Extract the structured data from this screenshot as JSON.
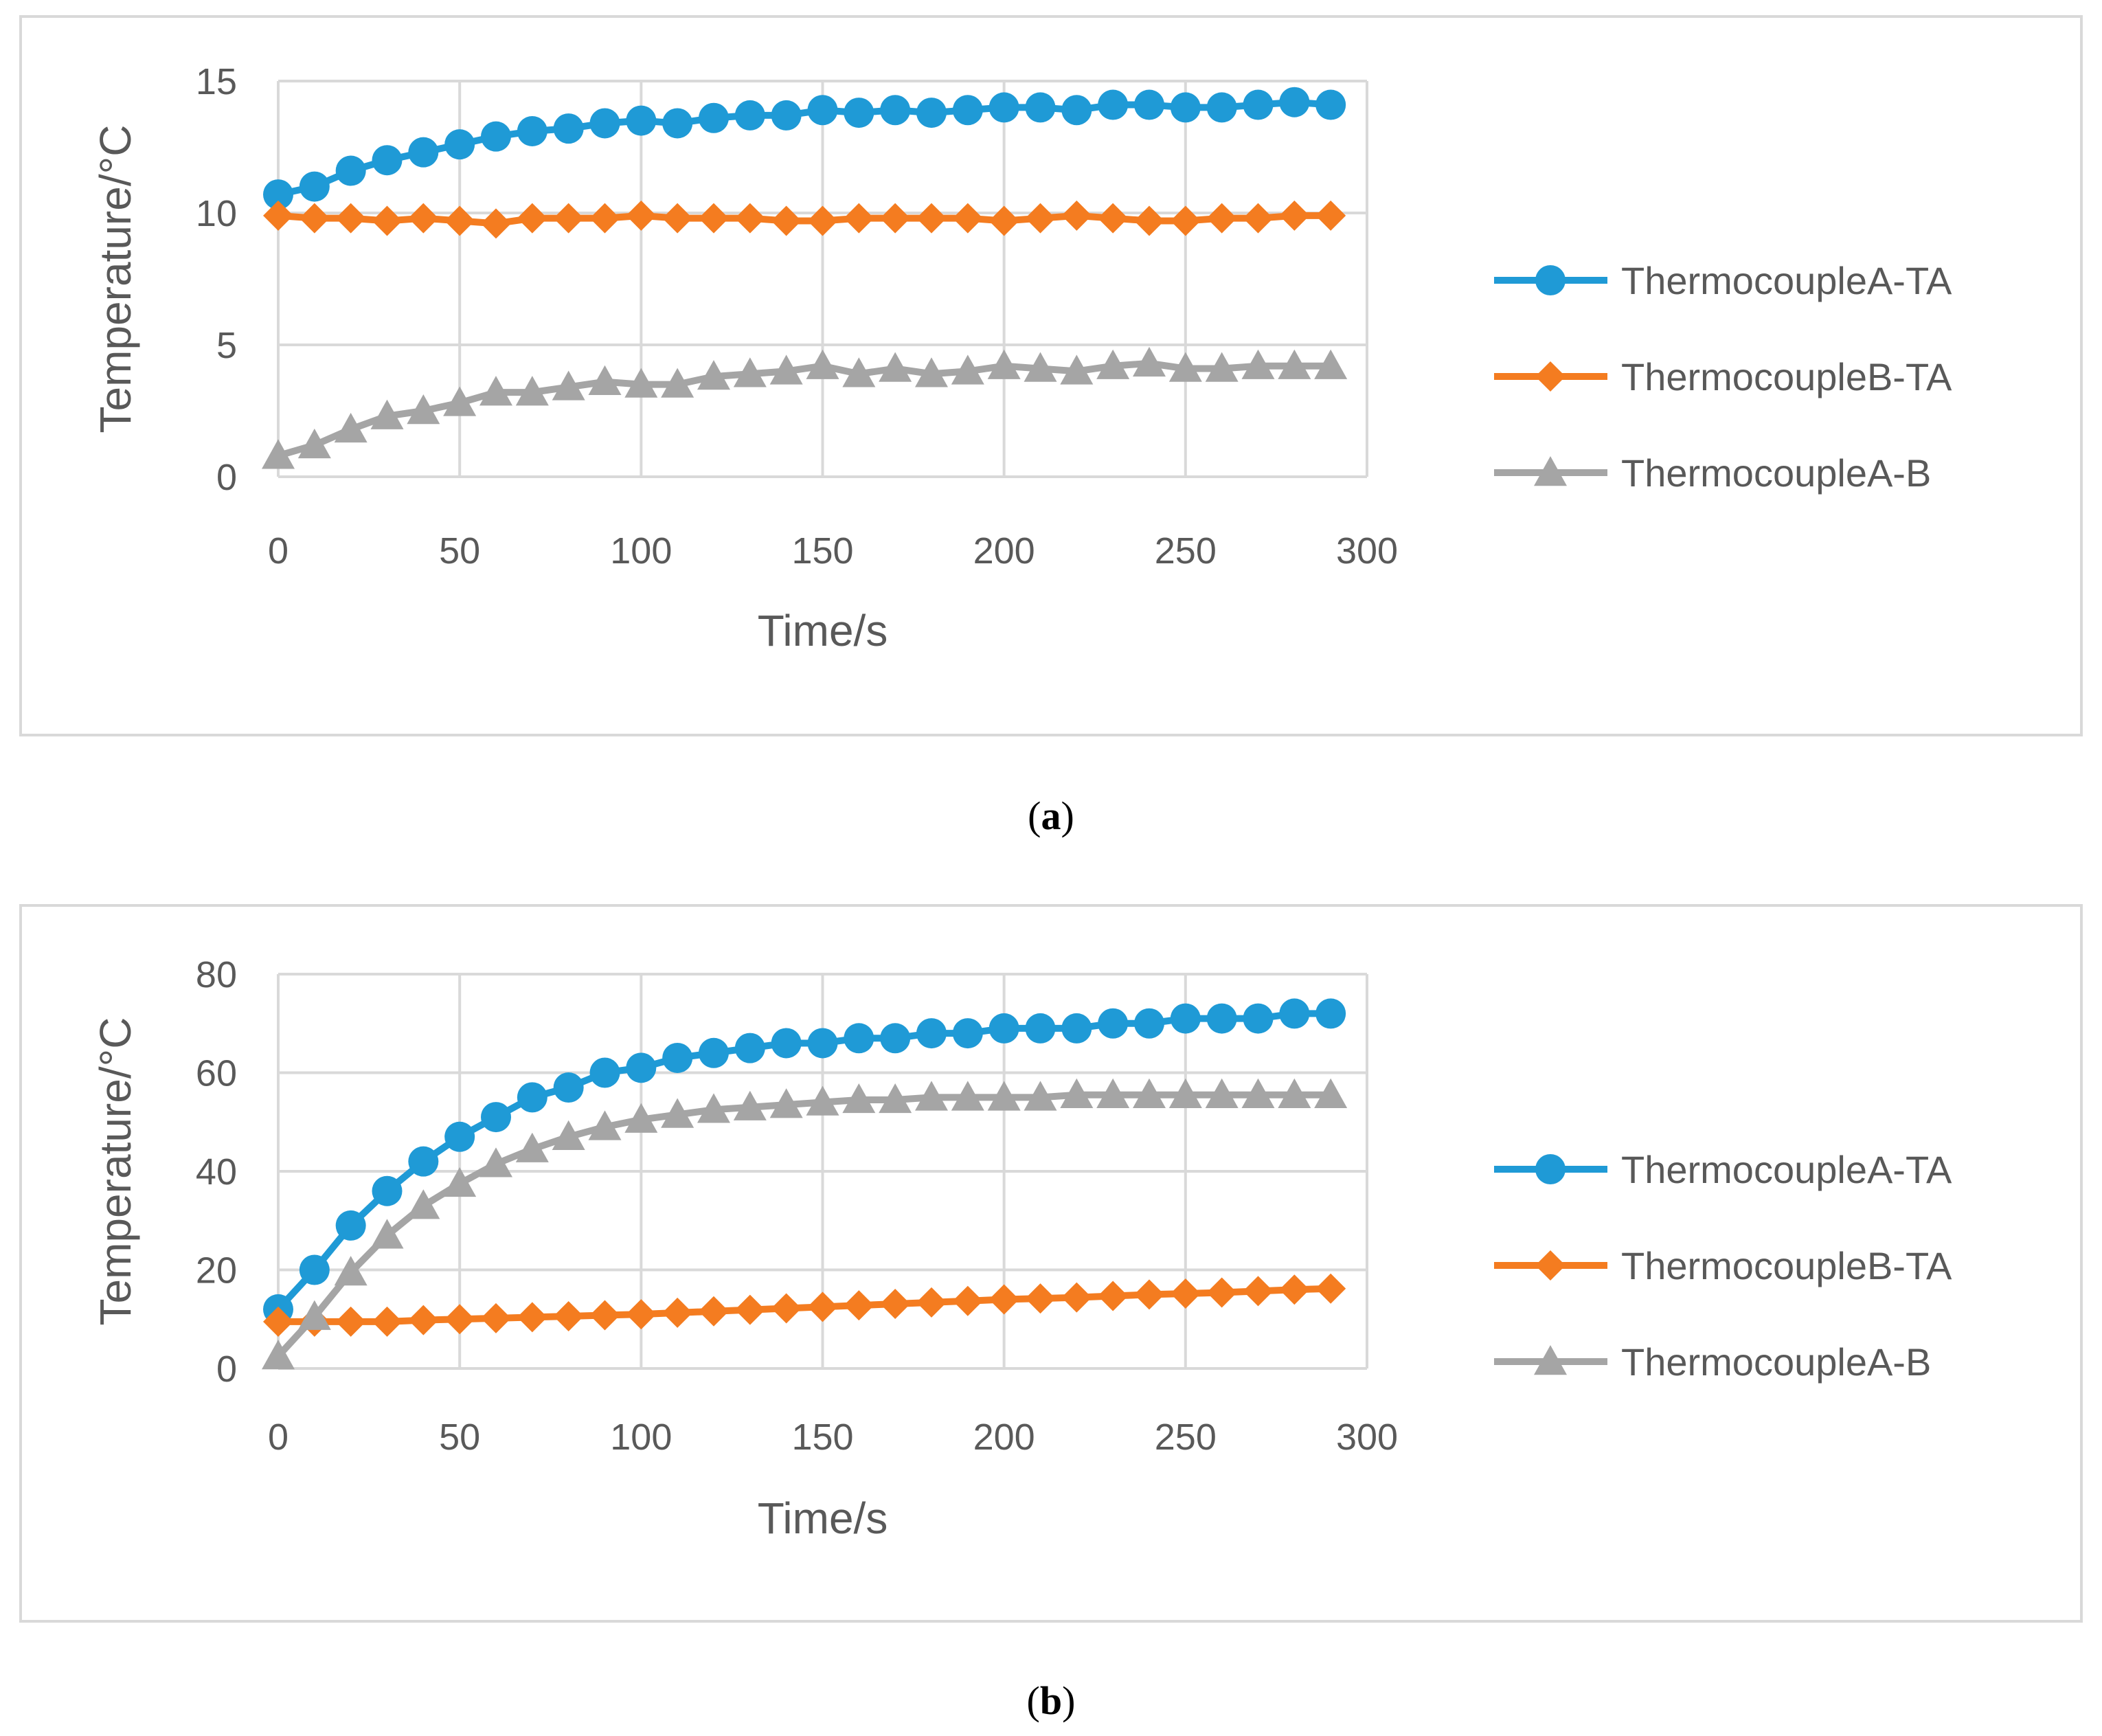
{
  "charts": [
    {
      "caption_letter": "a",
      "chart_ref": 0
    },
    {
      "caption_letter": "b",
      "chart_ref": 1
    }
  ],
  "chart_data": [
    {
      "type": "line",
      "title": "",
      "xlabel": "Time/s",
      "ylabel": "Temperature/°C",
      "xlim": [
        0,
        300
      ],
      "ylim": [
        0,
        15
      ],
      "xticks": [
        "0",
        "50",
        "100",
        "150",
        "200",
        "250",
        "300"
      ],
      "yticks": [
        "0",
        "5",
        "10",
        "15"
      ],
      "grid": true,
      "legend_position": "right",
      "x": [
        0,
        10,
        20,
        30,
        40,
        50,
        60,
        70,
        80,
        90,
        100,
        110,
        120,
        130,
        140,
        150,
        160,
        170,
        180,
        190,
        200,
        210,
        220,
        230,
        240,
        250,
        260,
        270,
        280,
        290
      ],
      "series": [
        {
          "name": "ThermocoupleA-TA",
          "color": "#1f9ad6",
          "marker": "circle",
          "values": [
            10.7,
            11.0,
            11.6,
            12.0,
            12.3,
            12.6,
            12.9,
            13.1,
            13.2,
            13.4,
            13.5,
            13.4,
            13.6,
            13.7,
            13.7,
            13.9,
            13.8,
            13.9,
            13.8,
            13.9,
            14.0,
            14.0,
            13.9,
            14.1,
            14.1,
            14.0,
            14.0,
            14.1,
            14.2,
            14.1
          ]
        },
        {
          "name": "ThermocoupleB-TA",
          "color": "#f47c20",
          "marker": "diamond",
          "values": [
            9.9,
            9.8,
            9.8,
            9.7,
            9.8,
            9.7,
            9.6,
            9.8,
            9.8,
            9.8,
            9.9,
            9.8,
            9.8,
            9.8,
            9.7,
            9.7,
            9.8,
            9.8,
            9.8,
            9.8,
            9.7,
            9.8,
            9.9,
            9.8,
            9.7,
            9.7,
            9.8,
            9.8,
            9.9,
            9.9
          ]
        },
        {
          "name": "ThermocoupleA-B",
          "color": "#a5a5a5",
          "marker": "triangle",
          "values": [
            0.8,
            1.2,
            1.8,
            2.3,
            2.5,
            2.8,
            3.2,
            3.2,
            3.4,
            3.6,
            3.5,
            3.5,
            3.8,
            3.9,
            4.0,
            4.2,
            3.9,
            4.1,
            3.9,
            4.0,
            4.2,
            4.1,
            4.0,
            4.2,
            4.3,
            4.1,
            4.1,
            4.2,
            4.2,
            4.2
          ]
        }
      ]
    },
    {
      "type": "line",
      "title": "",
      "xlabel": "Time/s",
      "ylabel": "Temperature/°C",
      "xlim": [
        0,
        300
      ],
      "ylim": [
        0,
        80
      ],
      "xticks": [
        "0",
        "50",
        "100",
        "150",
        "200",
        "250",
        "300"
      ],
      "yticks": [
        "0",
        "20",
        "40",
        "60",
        "80"
      ],
      "grid": true,
      "legend_position": "right",
      "x": [
        0,
        10,
        20,
        30,
        40,
        50,
        60,
        70,
        80,
        90,
        100,
        110,
        120,
        130,
        140,
        150,
        160,
        170,
        180,
        190,
        200,
        210,
        220,
        230,
        240,
        250,
        260,
        270,
        280,
        290
      ],
      "series": [
        {
          "name": "ThermocoupleA-TA",
          "color": "#1f9ad6",
          "marker": "circle",
          "values": [
            12,
            20,
            29,
            36,
            42,
            47,
            51,
            55,
            57,
            60,
            61,
            63,
            64,
            65,
            66,
            66,
            67,
            67,
            68,
            68,
            69,
            69,
            69,
            70,
            70,
            71,
            71,
            71,
            72,
            72
          ]
        },
        {
          "name": "ThermocoupleB-TA",
          "color": "#f47c20",
          "marker": "diamond",
          "values": [
            9.5,
            9.5,
            9.5,
            9.5,
            9.8,
            10,
            10.2,
            10.4,
            10.6,
            10.8,
            11,
            11.3,
            11.6,
            11.9,
            12.2,
            12.5,
            12.8,
            13.1,
            13.4,
            13.7,
            14,
            14.2,
            14.4,
            14.7,
            15,
            15.2,
            15.4,
            15.7,
            16,
            16.2
          ]
        },
        {
          "name": "ThermocoupleA-B",
          "color": "#a5a5a5",
          "marker": "triangle",
          "values": [
            2.5,
            10.5,
            19.5,
            27,
            33,
            37.5,
            41.5,
            44.5,
            47,
            49,
            50.5,
            51.5,
            52.5,
            53,
            53.5,
            54,
            54.5,
            54.5,
            55,
            55,
            55,
            55,
            55.5,
            55.5,
            55.5,
            55.5,
            55.5,
            55.5,
            55.5,
            55.5
          ]
        }
      ]
    }
  ]
}
